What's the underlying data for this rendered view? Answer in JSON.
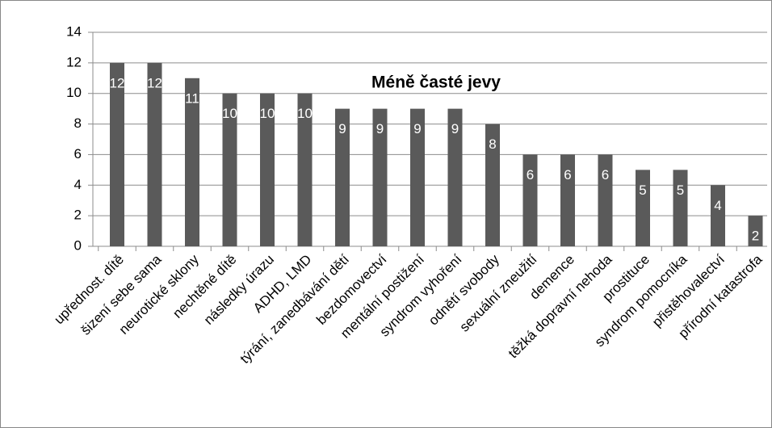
{
  "chart_data": {
    "type": "bar",
    "title": "Méně časté jevy",
    "categories": [
      "upřednost. dítě",
      "šizení sebe sama",
      "neurotické sklony",
      "nechtěné dítě",
      "následky úrazu",
      "ADHD, LMD",
      "týrání, zanedbávání dětí",
      "bezdomovectví",
      "mentální postižení",
      "syndrom vyhoření",
      "odnětí svobody",
      "sexuální zneužití",
      "demence",
      "těžká dopravní nehoda",
      "prostituce",
      "syndrom pomocníka",
      "přistěhovalectví",
      "přírodní katastrofa"
    ],
    "values": [
      12,
      12,
      11,
      10,
      10,
      10,
      9,
      9,
      9,
      9,
      8,
      6,
      6,
      6,
      5,
      5,
      4,
      2
    ],
    "color": "#5a5a5a",
    "ylim": [
      0,
      14
    ],
    "yticks": [
      0,
      2,
      4,
      6,
      8,
      10,
      12,
      14
    ],
    "grid": true
  }
}
